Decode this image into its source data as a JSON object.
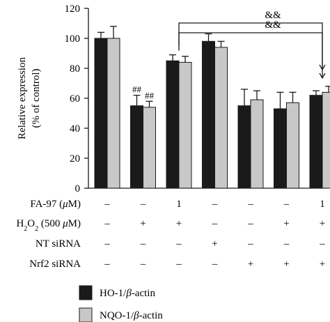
{
  "chart_data": {
    "type": "bar",
    "ylabel_line1": "Relative expression",
    "ylabel_line2": "(% of control)",
    "ylim": [
      0,
      120
    ],
    "yticks": [
      0,
      20,
      40,
      60,
      80,
      100,
      120
    ],
    "groups": 7,
    "series": [
      {
        "name": "HO-1/β-actin",
        "legend_prefix": "HO-1/",
        "legend_italic": "β",
        "legend_suffix": "-actin",
        "color": "#1a1a1a",
        "values": [
          100,
          55,
          85,
          98,
          55,
          53,
          62
        ],
        "errors": [
          4,
          7,
          4,
          5,
          11,
          11,
          3
        ]
      },
      {
        "name": "NQO-1/β-actin",
        "legend_prefix": "NQO-1/",
        "legend_italic": "β",
        "legend_suffix": "-actin",
        "color": "#c8c8c8",
        "values": [
          100,
          54,
          84,
          94,
          59,
          57,
          64
        ],
        "errors": [
          8,
          4,
          4,
          4,
          6,
          7,
          4
        ]
      }
    ],
    "annotations": [
      {
        "text": "##",
        "group": 1,
        "series": 0
      },
      {
        "text": "##",
        "group": 1,
        "series": 1
      },
      {
        "text": "&&",
        "from_group": 2,
        "to_group": 6,
        "level": "upper"
      },
      {
        "text": "&&",
        "from_group": 2,
        "to_group": 6,
        "level": "lower"
      }
    ],
    "treatment_rows": [
      {
        "label": "FA-97 (",
        "label_italic": "μ",
        "label_end": "M)",
        "values": [
          "–",
          "–",
          "1",
          "–",
          "–",
          "–",
          "1"
        ]
      },
      {
        "label": "H",
        "label_sub": "2",
        "label_mid": "O",
        "label_sub2": "2",
        "label_rest": " (500 ",
        "label_italic": "μ",
        "label_end": "M)",
        "values": [
          "–",
          "+",
          "+",
          "–",
          "–",
          "+",
          "+"
        ]
      },
      {
        "label": "NT siRNA",
        "values": [
          "–",
          "–",
          "–",
          "+",
          "–",
          "–",
          "–"
        ]
      },
      {
        "label": "Nrf2 siRNA",
        "values": [
          "–",
          "–",
          "–",
          "–",
          "+",
          "+",
          "+"
        ]
      }
    ]
  }
}
